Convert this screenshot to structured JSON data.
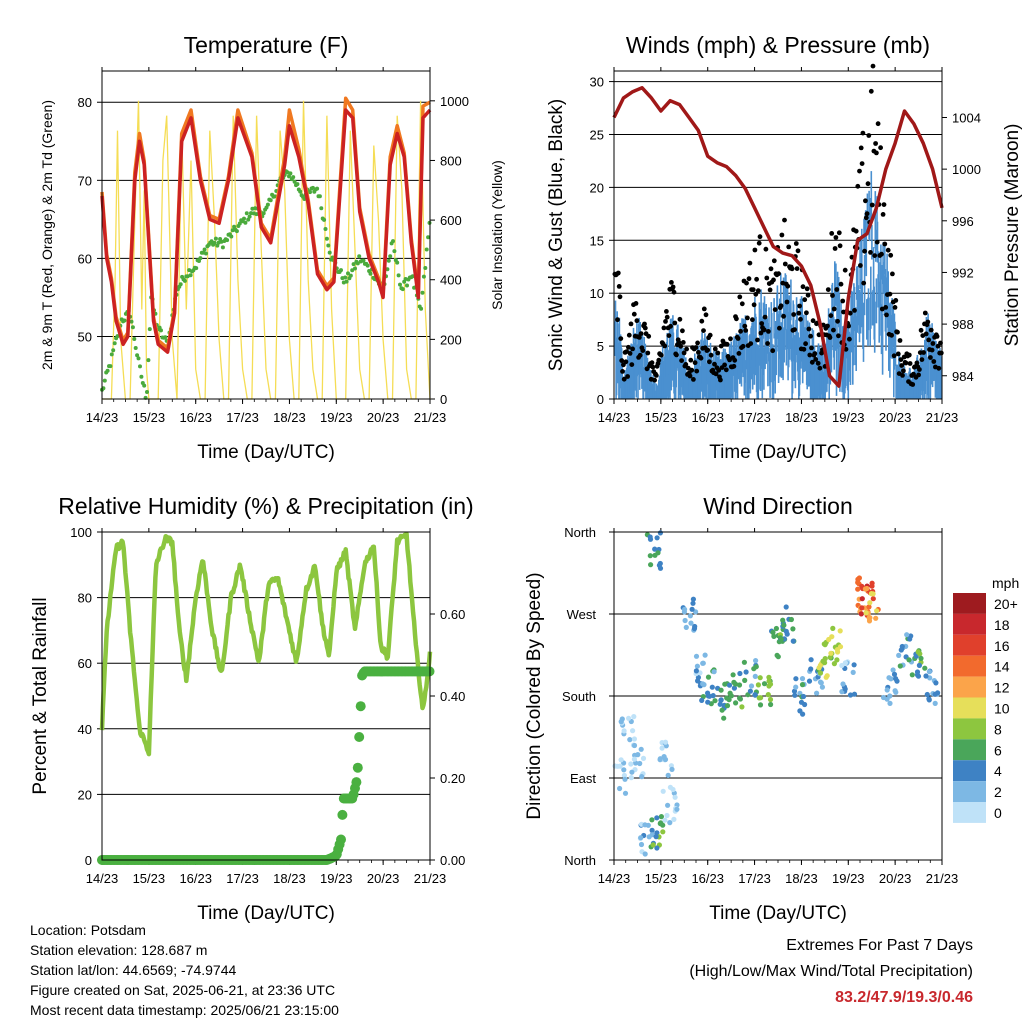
{
  "colors": {
    "temp2m": "#cc2222",
    "temp9m": "#f07820",
    "dewpoint": "#4aaa3c",
    "solar": "#f5dd55",
    "wind": "#4a90d0",
    "gust": "#000000",
    "pressure": "#a01818",
    "rh": "#8cc63f",
    "precip": "#4ab040"
  },
  "info": {
    "location": "Location: Potsdam",
    "elevation": "Station elevation: 128.687 m",
    "latlon": "Station lat/lon: 44.6569; -74.9744",
    "created": "Figure created on Sat, 2025-06-21, at 23:36 UTC",
    "recent": "Most recent data timestamp: 2025/06/21 23:15:00"
  },
  "extremes": {
    "title": "Extremes For Past 7 Days",
    "subtitle": "(High/Low/Max Wind/Total Precipitation)",
    "values": "83.2/47.9/19.3/0.46"
  },
  "chart_data": [
    {
      "type": "line",
      "title": "Temperature (F)",
      "xlabel": "Time (Day/UTC)",
      "ylabel": "2m & 9m T (Red, Orange) & 2m Td (Green)",
      "ylabel_right": "Solar Insolation (Yellow)",
      "xticks": [
        "14/23",
        "15/23",
        "16/23",
        "17/23",
        "18/23",
        "19/23",
        "20/23",
        "21/23"
      ],
      "xlim": [
        0,
        7
      ],
      "ylim": [
        42,
        84
      ],
      "yticks": [
        50,
        60,
        70,
        80
      ],
      "ylim_right": [
        0,
        1100
      ],
      "yticks_right": [
        0,
        200,
        400,
        600,
        800,
        1000
      ],
      "grid": true,
      "series": [
        {
          "name": "2m T",
          "axis": "left",
          "x": [
            0,
            0.1,
            0.2,
            0.3,
            0.45,
            0.55,
            0.7,
            0.8,
            0.9,
            1.1,
            1.2,
            1.4,
            1.55,
            1.7,
            1.9,
            2.1,
            2.3,
            2.5,
            2.7,
            2.9,
            3.2,
            3.4,
            3.6,
            3.9,
            4.0,
            4.2,
            4.3,
            4.4,
            4.6,
            4.8,
            4.95,
            5.2,
            5.35,
            5.5,
            5.7,
            5.9,
            6.0,
            6.15,
            6.3,
            6.45,
            6.6,
            6.75,
            6.85,
            7.0
          ],
          "y": [
            68,
            60,
            57,
            52,
            49,
            50,
            70,
            75,
            72,
            52,
            49,
            48,
            53,
            75,
            78,
            70,
            65,
            64.5,
            70,
            78,
            73,
            64,
            62,
            72,
            77,
            73,
            70,
            67,
            58,
            56,
            57,
            79,
            78,
            66,
            60,
            57,
            55,
            72,
            76,
            73,
            62,
            55,
            78,
            79
          ]
        },
        {
          "name": "9m T",
          "axis": "left",
          "x": [
            0,
            0.1,
            0.2,
            0.3,
            0.45,
            0.55,
            0.7,
            0.8,
            0.9,
            1.1,
            1.2,
            1.4,
            1.55,
            1.7,
            1.9,
            2.1,
            2.3,
            2.5,
            2.7,
            2.9,
            3.2,
            3.4,
            3.6,
            3.9,
            4.0,
            4.2,
            4.3,
            4.4,
            4.6,
            4.8,
            4.95,
            5.2,
            5.35,
            5.5,
            5.7,
            5.9,
            6.0,
            6.15,
            6.3,
            6.45,
            6.6,
            6.75,
            6.85,
            7.0
          ],
          "y": [
            68.5,
            60.5,
            57.5,
            52.5,
            49.5,
            50.5,
            71,
            76,
            72.5,
            52.5,
            49.5,
            48.5,
            53.5,
            76,
            79,
            70.5,
            65.5,
            65,
            70.5,
            79,
            73.5,
            64.5,
            62.5,
            73,
            79,
            74,
            70.5,
            67.5,
            58.5,
            56.5,
            57.5,
            80.5,
            79,
            66.5,
            60.5,
            57.5,
            55.5,
            73,
            77,
            73.5,
            62.5,
            55.5,
            79.5,
            80
          ]
        },
        {
          "name": "2m Td",
          "axis": "left",
          "x": [
            0,
            0.2,
            0.4,
            0.6,
            0.8,
            0.95,
            1.05,
            1.2,
            1.4,
            1.6,
            1.8,
            2.0,
            2.3,
            2.6,
            2.9,
            3.2,
            3.5,
            3.8,
            4.0,
            4.3,
            4.6,
            4.9,
            5.2,
            5.5,
            5.8,
            6.0,
            6.2,
            6.4,
            6.6,
            6.8,
            7.0
          ],
          "y": [
            43,
            47,
            52,
            53,
            46,
            42,
            55,
            51,
            49,
            56,
            58,
            59,
            62,
            62,
            64,
            66,
            66,
            70,
            71,
            68,
            69,
            60,
            57,
            60,
            58,
            56,
            62,
            56,
            58,
            53,
            65
          ]
        },
        {
          "name": "Solar",
          "axis": "right",
          "x": [
            0,
            0.1,
            0.2,
            0.28,
            0.33,
            0.4,
            0.5,
            0.6,
            0.7,
            0.78,
            0.85,
            0.9,
            0.95,
            1.0,
            1.1,
            1.2,
            1.3,
            1.38,
            1.5,
            1.6,
            1.7,
            1.8,
            1.9,
            2.0,
            2.1,
            2.2,
            2.3,
            2.4,
            2.5,
            2.6,
            2.7,
            2.8,
            2.9,
            3.0,
            3.1,
            3.2,
            3.3,
            3.4,
            3.5,
            3.6,
            3.7,
            3.8,
            3.9,
            4.0,
            4.1,
            4.2,
            4.3,
            4.4,
            4.5,
            4.6,
            4.7,
            4.8,
            4.9,
            5.0,
            5.1,
            5.2,
            5.3,
            5.4,
            5.5,
            5.6,
            5.7,
            5.8,
            5.9,
            6.0,
            6.1,
            6.2,
            6.3,
            6.4,
            6.5,
            6.6,
            6.7,
            6.8,
            6.9,
            7.0
          ],
          "y": [
            0,
            0,
            0,
            400,
            900,
            200,
            0,
            0,
            600,
            1000,
            300,
            700,
            100,
            0,
            0,
            0,
            800,
            950,
            200,
            0,
            900,
            300,
            800,
            100,
            0,
            0,
            900,
            600,
            200,
            0,
            0,
            950,
            400,
            100,
            0,
            0,
            950,
            500,
            100,
            0,
            0,
            900,
            700,
            200,
            0,
            0,
            1000,
            400,
            100,
            0,
            0,
            950,
            300,
            0,
            0,
            0,
            900,
            500,
            100,
            0,
            0,
            850,
            600,
            200,
            0,
            0,
            950,
            700,
            100,
            0,
            0,
            1000,
            300,
            0
          ]
        }
      ]
    },
    {
      "type": "scatter",
      "title": "Winds (mph) & Pressure (mb)",
      "xlabel": "Time (Day/UTC)",
      "ylabel": "Sonic Wind & Gust (Blue, Black)",
      "ylabel_right": "Station Pressure (Maroon)",
      "xticks": [
        "14/23",
        "15/23",
        "16/23",
        "17/23",
        "18/23",
        "19/23",
        "20/23",
        "21/23"
      ],
      "xlim": [
        0,
        7
      ],
      "ylim": [
        0,
        31
      ],
      "yticks": [
        0,
        5,
        10,
        15,
        20,
        25,
        30
      ],
      "ylim_right": [
        982.2,
        1007.6
      ],
      "yticks_right": [
        984,
        988,
        992,
        996,
        1000,
        1004
      ],
      "grid": true,
      "series": [
        {
          "name": "Pressure",
          "axis": "right",
          "type": "line",
          "x": [
            0,
            0.2,
            0.4,
            0.6,
            0.8,
            1.0,
            1.2,
            1.4,
            1.6,
            1.8,
            2.0,
            2.2,
            2.4,
            2.6,
            2.8,
            3.0,
            3.2,
            3.4,
            3.6,
            3.8,
            4.0,
            4.2,
            4.4,
            4.6,
            4.8,
            5.0,
            5.2,
            5.4,
            5.6,
            5.8,
            6.0,
            6.2,
            6.4,
            6.6,
            6.8,
            7.0
          ],
          "y": [
            1004,
            1005.5,
            1006,
            1006.3,
            1005.5,
            1004.5,
            1005.3,
            1005,
            1004,
            1003,
            1001,
            1000.5,
            1000.2,
            999.5,
            998.5,
            997,
            995.5,
            994,
            993.5,
            993.3,
            992.5,
            991,
            988,
            984,
            983.2,
            990,
            994.5,
            995,
            997,
            1000,
            1002,
            1004.5,
            1003.5,
            1002,
            1000,
            997
          ]
        },
        {
          "name": "Gust",
          "axis": "left",
          "type": "scatter",
          "x": [
            0.1,
            0.2,
            0.5,
            0.9,
            1.1,
            1.3,
            1.6,
            1.9,
            2.2,
            2.5,
            2.8,
            3.1,
            3.4,
            3.6,
            3.9,
            4.2,
            4.5,
            4.7,
            5.0,
            5.3,
            5.5,
            5.8,
            6.1,
            6.4,
            6.7,
            6.9
          ],
          "y": [
            12,
            3,
            10,
            2,
            9,
            11,
            3,
            8,
            4,
            6,
            11,
            14,
            11,
            15,
            13,
            8,
            6,
            17,
            10,
            22,
            29,
            17,
            5,
            3,
            9,
            7
          ]
        },
        {
          "name": "Wind",
          "axis": "left",
          "type": "scatter",
          "x": [
            0.1,
            0.2,
            0.5,
            0.9,
            1.1,
            1.3,
            1.6,
            1.9,
            2.2,
            2.5,
            2.8,
            3.1,
            3.4,
            3.6,
            3.9,
            4.2,
            4.5,
            4.7,
            5.0,
            5.3,
            5.5,
            5.8,
            6.1,
            6.4,
            6.7,
            6.9
          ],
          "y": [
            7,
            2,
            6,
            1,
            5,
            6,
            2,
            5,
            3,
            4,
            6,
            8,
            7,
            9,
            8,
            5,
            4,
            10,
            6,
            12,
            16,
            11,
            3,
            2,
            6,
            4
          ]
        }
      ]
    },
    {
      "type": "line",
      "title": "Relative Humidity (%) & Precipitation (in)",
      "xlabel": "Time (Day/UTC)",
      "ylabel": "Percent & Total Rainfall",
      "xticks": [
        "14/23",
        "15/23",
        "16/23",
        "17/23",
        "18/23",
        "19/23",
        "20/23",
        "21/23"
      ],
      "xlim": [
        0,
        7
      ],
      "ylim": [
        0,
        100
      ],
      "yticks": [
        0,
        20,
        40,
        60,
        80,
        100
      ],
      "ylim_right": [
        0,
        0.8
      ],
      "yticks_right": [
        "0.00",
        "0.20",
        "0.40",
        "0.60"
      ],
      "grid": true,
      "series": [
        {
          "name": "RH",
          "axis": "left",
          "x": [
            0,
            0.1,
            0.3,
            0.45,
            0.6,
            0.8,
            1.0,
            1.15,
            1.35,
            1.5,
            1.65,
            1.8,
            2.0,
            2.15,
            2.35,
            2.55,
            2.75,
            2.95,
            3.15,
            3.35,
            3.55,
            3.75,
            3.95,
            4.15,
            4.35,
            4.55,
            4.7,
            4.85,
            5.0,
            5.2,
            5.4,
            5.6,
            5.8,
            5.95,
            6.1,
            6.3,
            6.5,
            6.7,
            6.85,
            7.0
          ],
          "y": [
            40,
            70,
            95,
            97,
            70,
            40,
            33,
            90,
            98,
            97,
            70,
            55,
            80,
            92,
            70,
            56,
            80,
            90,
            74,
            60,
            84,
            86,
            73,
            60,
            82,
            90,
            72,
            62,
            88,
            94,
            70,
            90,
            96,
            65,
            62,
            97,
            99,
            65,
            45,
            63
          ]
        },
        {
          "name": "Precipitation",
          "axis": "right",
          "x": [
            0,
            4.8,
            5.0,
            5.1,
            5.15,
            5.2,
            5.35,
            5.45,
            5.55,
            5.6,
            5.7,
            7.0
          ],
          "y": [
            0,
            0,
            0.01,
            0.05,
            0.15,
            0.15,
            0.15,
            0.2,
            0.45,
            0.46,
            0.46,
            0.46
          ]
        }
      ]
    },
    {
      "type": "scatter",
      "title": "Wind Direction",
      "xlabel": "Time (Day/UTC)",
      "ylabel": "Direction (Colored By Speed)",
      "xticks": [
        "14/23",
        "15/23",
        "16/23",
        "17/23",
        "18/23",
        "19/23",
        "20/23",
        "21/23"
      ],
      "xlim": [
        0,
        7
      ],
      "ylim": [
        0,
        360
      ],
      "yticks": [
        "North",
        "East",
        "South",
        "West",
        "North"
      ],
      "legend_title": "mph",
      "legend_labels": [
        "20+",
        "18",
        "16",
        "14",
        "12",
        "10",
        "8",
        "6",
        "4",
        "2",
        "0"
      ],
      "legend_colors": [
        "#9e1b1f",
        "#c8282d",
        "#e0402c",
        "#f26a2d",
        "#fba44a",
        "#e6df5a",
        "#8dc63f",
        "#4aa65a",
        "#3e82c4",
        "#7db8e4",
        "#bfe2f8"
      ],
      "points": [
        {
          "x": 0.1,
          "dir": 90,
          "spd": 3
        },
        {
          "x": 0.3,
          "dir": 140,
          "spd": 2
        },
        {
          "x": 0.5,
          "dir": 110,
          "spd": 1
        },
        {
          "x": 0.7,
          "dir": 20,
          "spd": 3
        },
        {
          "x": 0.85,
          "dir": 340,
          "spd": 6
        },
        {
          "x": 0.9,
          "dir": 30,
          "spd": 7
        },
        {
          "x": 1.1,
          "dir": 110,
          "spd": 2
        },
        {
          "x": 1.2,
          "dir": 60,
          "spd": 1
        },
        {
          "x": 1.6,
          "dir": 270,
          "spd": 4
        },
        {
          "x": 1.8,
          "dir": 210,
          "spd": 3
        },
        {
          "x": 2.0,
          "dir": 190,
          "spd": 5
        },
        {
          "x": 2.3,
          "dir": 175,
          "spd": 6
        },
        {
          "x": 2.6,
          "dir": 185,
          "spd": 7
        },
        {
          "x": 2.9,
          "dir": 200,
          "spd": 5
        },
        {
          "x": 3.2,
          "dir": 190,
          "spd": 8
        },
        {
          "x": 3.5,
          "dir": 240,
          "spd": 7
        },
        {
          "x": 3.7,
          "dir": 260,
          "spd": 6
        },
        {
          "x": 4.0,
          "dir": 180,
          "spd": 5
        },
        {
          "x": 4.3,
          "dir": 200,
          "spd": 4
        },
        {
          "x": 4.5,
          "dir": 220,
          "spd": 9
        },
        {
          "x": 4.7,
          "dir": 235,
          "spd": 10
        },
        {
          "x": 5.0,
          "dir": 200,
          "spd": 3
        },
        {
          "x": 5.3,
          "dir": 290,
          "spd": 14
        },
        {
          "x": 5.4,
          "dir": 285,
          "spd": 18
        },
        {
          "x": 5.5,
          "dir": 280,
          "spd": 13
        },
        {
          "x": 5.9,
          "dir": 190,
          "spd": 4
        },
        {
          "x": 6.2,
          "dir": 230,
          "spd": 5
        },
        {
          "x": 6.5,
          "dir": 210,
          "spd": 7
        },
        {
          "x": 6.8,
          "dir": 190,
          "spd": 4
        }
      ]
    }
  ]
}
